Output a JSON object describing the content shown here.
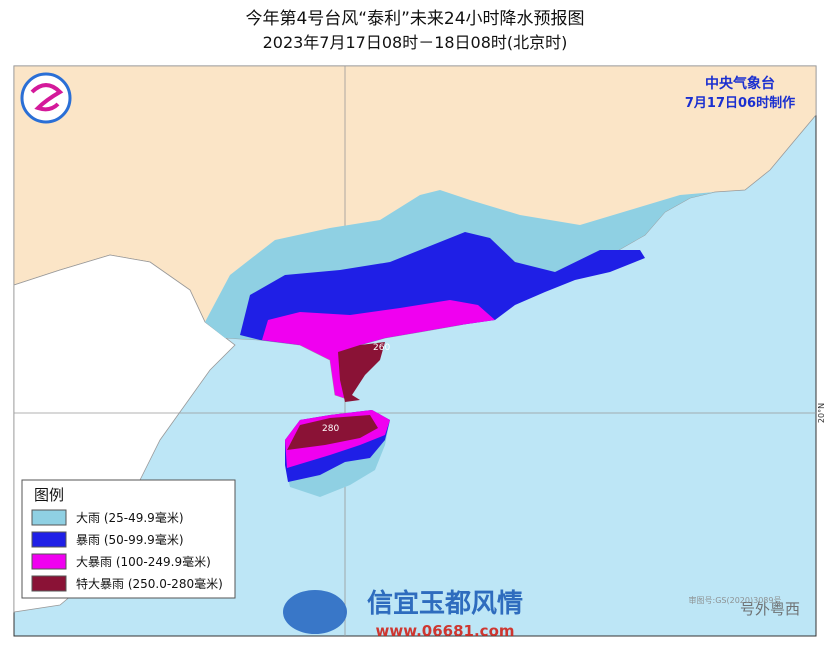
{
  "header": {
    "title": "今年第4号台风“泰利”未来24小时降水预报图",
    "subtitle": "2023年7月17日08时－18日08时(北京时)"
  },
  "issuer": {
    "agency": "中央气象台",
    "issued": "7月17日06时制作"
  },
  "legend": {
    "title": "图例",
    "items": [
      {
        "label": "大雨 (25-49.9毫米)",
        "color": "#8fd0e3"
      },
      {
        "label": "暴雨 (50-99.9毫米)",
        "color": "#1f1fe6"
      },
      {
        "label": "大暴雨 (100-249.9毫米)",
        "color": "#f000f0"
      },
      {
        "label": "特大暴雨 (250.0-280毫米)",
        "color": "#8a1236"
      }
    ]
  },
  "annotations": [
    "260",
    "280"
  ],
  "graticule": {
    "lat_label": "20°N"
  },
  "watermarks": [
    "信宜玉都风情",
    "www.06681.com",
    "号外粤西",
    "审图号:GS(2020)3089号"
  ]
}
